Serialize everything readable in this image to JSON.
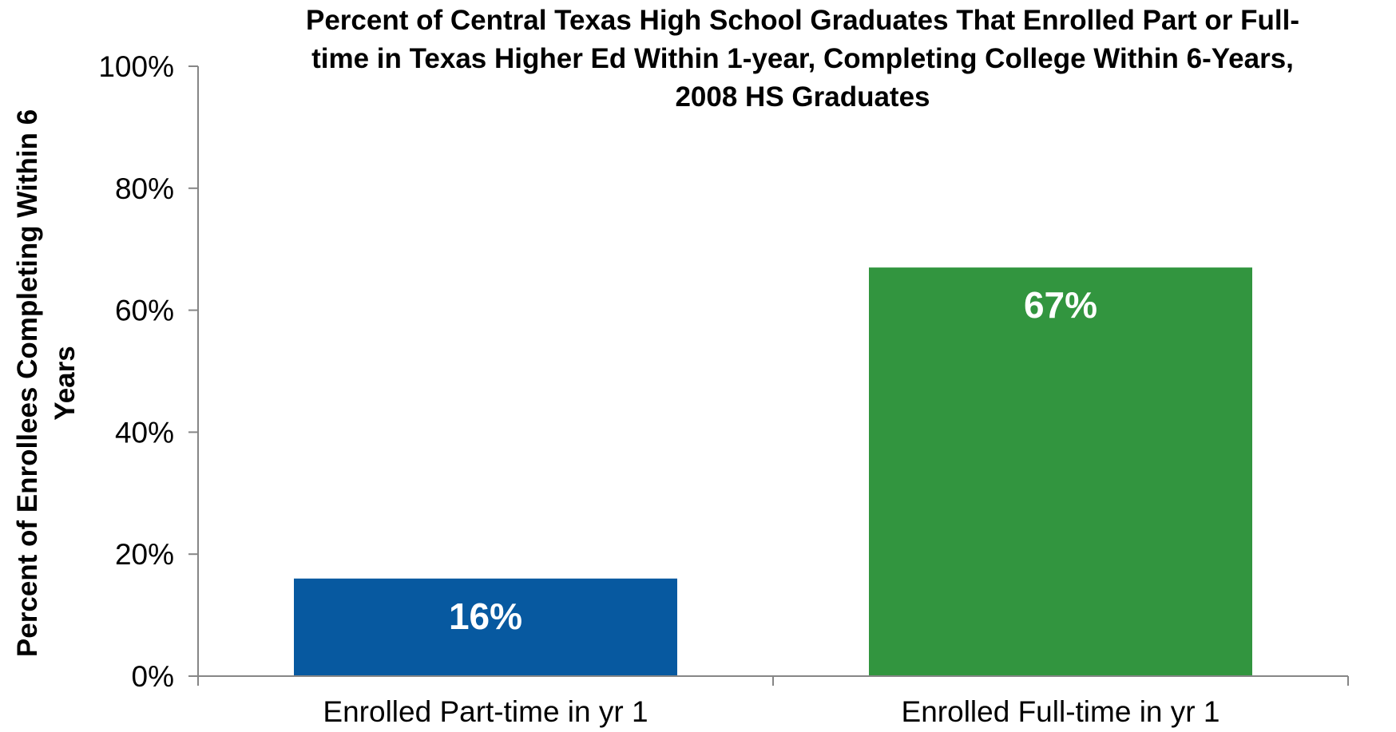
{
  "chart_data": {
    "type": "bar",
    "title_lines": [
      "Percent of Central Texas High School Graduates That Enrolled Part or Full-",
      "time in Texas Higher Ed Within 1-year, Completing College Within 6-Years,",
      "2008 HS Graduates"
    ],
    "ylabel_lines": [
      "Percent of Enrollees Completing Within 6",
      "Years"
    ],
    "xlabel": "",
    "categories": [
      "Enrolled Part-time in yr 1",
      "Enrolled Full-time in yr 1"
    ],
    "values": [
      16,
      67
    ],
    "data_labels": [
      "16%",
      "67%"
    ],
    "colors": [
      "#0759A0",
      "#32953F"
    ],
    "ylim": [
      0,
      100
    ],
    "yticks": [
      0,
      20,
      40,
      60,
      80,
      100
    ],
    "ytick_labels": [
      "0%",
      "20%",
      "40%",
      "60%",
      "80%",
      "100%"
    ],
    "grid": false,
    "legend": "none"
  }
}
